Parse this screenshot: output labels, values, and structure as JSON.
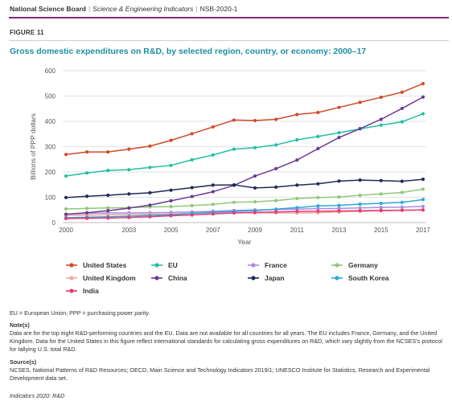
{
  "header": {
    "org": "National Science Board",
    "publication": "Science & Engineering Indicators",
    "report": "NSB-2020-1"
  },
  "figure_label": "FIGURE 11",
  "footer": {
    "abbreviations": "EU = European Union; PPP = purchasing power parity.",
    "notes_heading": "Note(s)",
    "notes_text": "Data are for the top eight R&D-performing countries and the EU. Data are not available for all countries for all years. The EU includes France, Germany, and the United Kingdom. Data for the United States in this figure reflect international standards for calculating gross expenditures on R&D, which vary slightly from the NCSES's protocol for tallying U.S. total R&D.",
    "sources_heading": "Source(s)",
    "sources_text": "NCSES, National Patterns of R&D Resources; OECD, Main Science and Technology Indicators 2019/1; UNESCO Institute for Statistics, Research and Experimental Development data set.",
    "indicators": "Indicators 2020: R&D"
  },
  "chart_data": {
    "type": "line",
    "title": "Gross domestic expenditures on R&D, by selected region, country, or economy: 2000–17",
    "xlabel": "Year",
    "ylabel": "Billions of PPP dollars",
    "xlim": [
      2000,
      2017
    ],
    "ylim": [
      0,
      600
    ],
    "x_ticks": [
      "2000",
      "2003",
      "2005",
      "2007",
      "2009",
      "2011",
      "2013",
      "2015",
      "2017"
    ],
    "y_ticks": [
      "0",
      "100",
      "200",
      "300",
      "400",
      "500",
      "600"
    ],
    "grid": true,
    "legend_position": "bottom",
    "x": [
      2000,
      2001,
      2002,
      2003,
      2004,
      2005,
      2006,
      2007,
      2008,
      2009,
      2010,
      2011,
      2012,
      2013,
      2014,
      2015,
      2016,
      2017
    ],
    "series": [
      {
        "name": "United States",
        "color": "#d04a2a",
        "values": [
          269,
          279,
          279,
          290,
          302,
          325,
          351,
          378,
          405,
          403,
          408,
          427,
          435,
          455,
          475,
          495,
          515,
          549
        ]
      },
      {
        "name": "EU",
        "color": "#21bfa5",
        "values": [
          184,
          196,
          206,
          209,
          218,
          226,
          248,
          267,
          290,
          296,
          307,
          327,
          340,
          355,
          370,
          385,
          398,
          430
        ]
      },
      {
        "name": "France",
        "color": "#a98ce0",
        "values": [
          33,
          36,
          38,
          38,
          39,
          40,
          42,
          45,
          48,
          50,
          51,
          53,
          55,
          56,
          58,
          60,
          61,
          64
        ]
      },
      {
        "name": "Germany",
        "color": "#8fc87a",
        "values": [
          54,
          56,
          58,
          59,
          62,
          63,
          67,
          72,
          80,
          82,
          87,
          95,
          99,
          101,
          108,
          113,
          119,
          132
        ]
      },
      {
        "name": "United Kingdom",
        "color": "#f0a898",
        "values": [
          28,
          29,
          31,
          32,
          33,
          34,
          36,
          38,
          39,
          38,
          38,
          38,
          39,
          42,
          44,
          46,
          48,
          50
        ]
      },
      {
        "name": "China",
        "color": "#6b3a94",
        "values": [
          33,
          39,
          47,
          57,
          69,
          86,
          103,
          122,
          147,
          184,
          213,
          247,
          292,
          336,
          371,
          408,
          451,
          496
        ]
      },
      {
        "name": "Japan",
        "color": "#1f2a55",
        "values": [
          99,
          104,
          108,
          113,
          118,
          128,
          138,
          148,
          149,
          137,
          140,
          148,
          153,
          164,
          168,
          166,
          163,
          171
        ]
      },
      {
        "name": "South Korea",
        "color": "#2aa8d6",
        "values": [
          19,
          21,
          23,
          25,
          28,
          31,
          36,
          41,
          44,
          47,
          53,
          59,
          66,
          68,
          73,
          76,
          80,
          91
        ]
      },
      {
        "name": "India",
        "color": "#e8397a",
        "values": [
          16,
          17,
          18,
          20,
          23,
          27,
          30,
          34,
          38,
          40,
          42,
          44,
          45,
          46,
          47,
          48,
          49,
          50
        ]
      }
    ]
  }
}
